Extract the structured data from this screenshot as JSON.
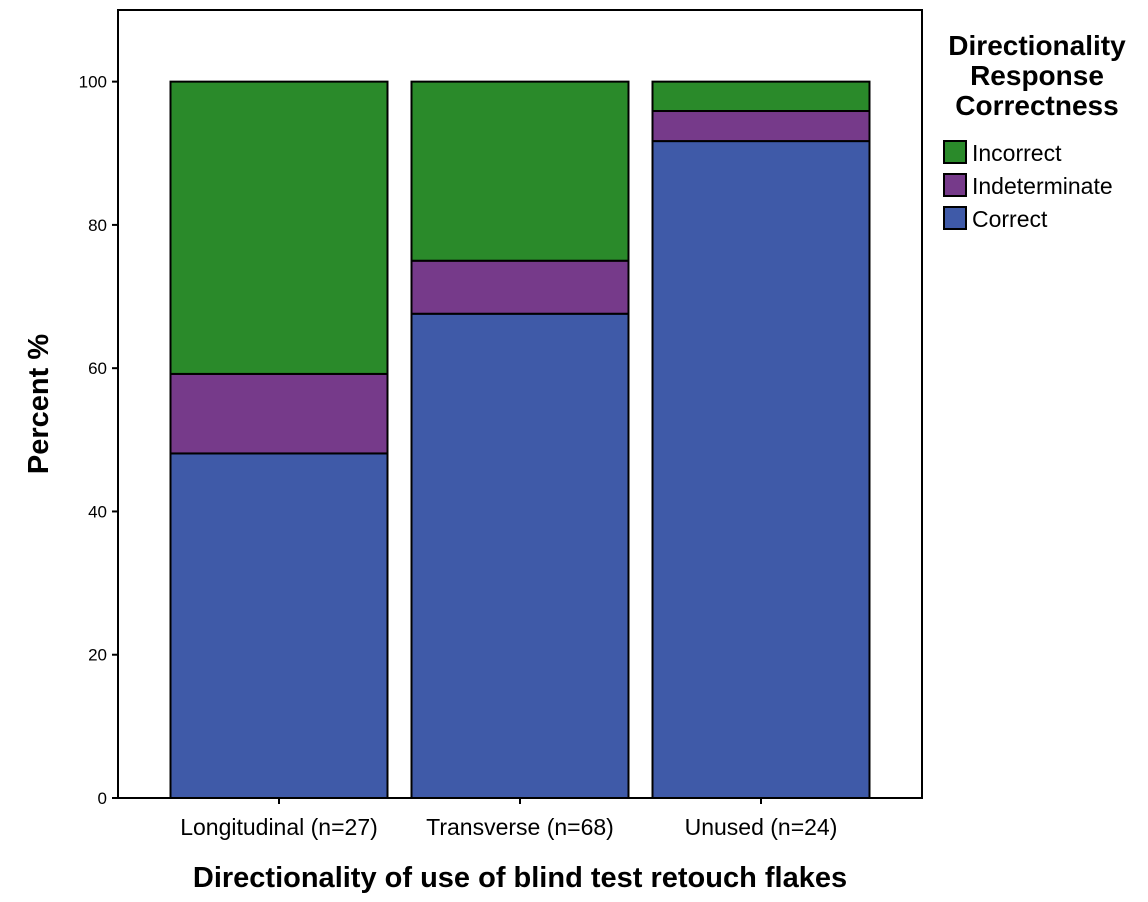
{
  "chart_data": {
    "type": "bar",
    "stacked": true,
    "categories": [
      "Longitudinal (n=27)",
      "Transverse (n=68)",
      "Unused (n=24)"
    ],
    "series": [
      {
        "name": "Correct",
        "color": "#3f5aa8",
        "values": [
          48.1,
          67.6,
          91.7
        ]
      },
      {
        "name": "Indeterminate",
        "color": "#763a8a",
        "values": [
          11.1,
          7.4,
          4.2
        ]
      },
      {
        "name": "Incorrect",
        "color": "#2a8a2a",
        "values": [
          40.8,
          25.0,
          4.1
        ]
      }
    ],
    "xlabel": "Directionality of use of blind test retouch flakes",
    "ylabel": "Percent %",
    "ylim": [
      0,
      110
    ],
    "yticks": [
      0,
      20,
      40,
      60,
      80,
      100
    ],
    "grid": false,
    "legend": {
      "title": [
        "Directionality",
        "Response",
        "Correctness"
      ],
      "placement": "top-right, outside plot",
      "order": [
        "Incorrect",
        "Indeterminate",
        "Correct"
      ]
    }
  }
}
